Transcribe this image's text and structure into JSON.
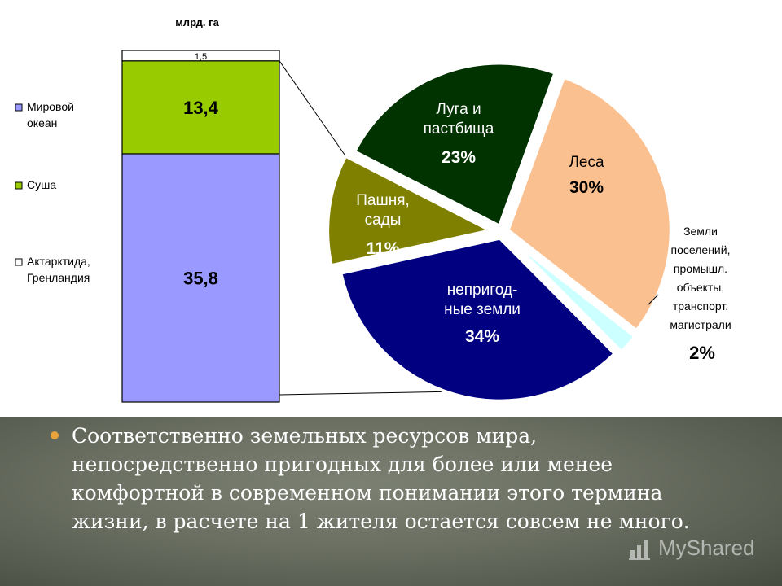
{
  "chart_data": [
    {
      "type": "bar",
      "stacked": true,
      "title": "",
      "ylabel": "млрд. га",
      "series": [
        {
          "name": "Мировой океан",
          "value": 35.8,
          "label": "35,8",
          "color": "#9999ff"
        },
        {
          "name": "Суша",
          "value": 13.4,
          "label": "13,4",
          "color": "#99cc00"
        },
        {
          "name": "Актарктида, Гренландия",
          "value": 1.5,
          "label": "1,5",
          "color": "#ffffff"
        }
      ],
      "legend": {
        "placement": "left",
        "entries": [
          {
            "lines": [
              "Мировой",
              "океан"
            ],
            "color": "#9999ff"
          },
          {
            "lines": [
              "Суша"
            ],
            "color": "#99cc00"
          },
          {
            "lines": [
              "Актарктида,",
              "Гренландия"
            ],
            "color": "#ffffff"
          }
        ]
      }
    },
    {
      "type": "pie",
      "title": "",
      "exploded": true,
      "slices": [
        {
          "name_lines": [
            "Леса"
          ],
          "pct_label": "30%",
          "value": 30,
          "color": "#fac090",
          "text_color": "#000000"
        },
        {
          "name_lines": [
            "Земли",
            "поселений,",
            "промышл.",
            "объекты,",
            "транспорт.",
            "магистрали"
          ],
          "pct_label": "2%",
          "value": 2,
          "color": "#ccffff",
          "text_color": "#000000"
        },
        {
          "name_lines": [
            "непригод-",
            "ные земли"
          ],
          "pct_label": "34%",
          "value": 34,
          "color": "#000080",
          "text_color": "#ffffff"
        },
        {
          "name_lines": [
            "Пашня,",
            "сады"
          ],
          "pct_label": "11%",
          "value": 11,
          "color": "#808000",
          "text_color": "#ffffff"
        },
        {
          "name_lines": [
            "Луга и",
            "пастбища"
          ],
          "pct_label": "23%",
          "value": 23,
          "color": "#003300",
          "text_color": "#ffffff"
        }
      ]
    }
  ],
  "text": {
    "paragraph": "Соответственно земельных ресурсов мира, непосредственно пригодных для более или менее комфортной в современном понимании этого термина жизни, в расчете на 1 жителя остается совсем не много."
  },
  "watermark": {
    "label": "MyShared",
    "icon": "bar-chart-icon"
  }
}
